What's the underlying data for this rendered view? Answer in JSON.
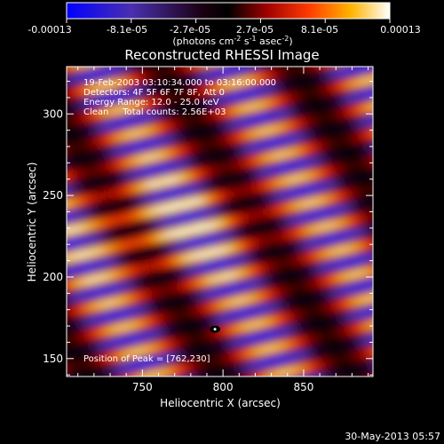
{
  "chart_data": {
    "type": "heatmap",
    "title": "Reconstructed RHESSI Image",
    "xlabel": "Heliocentric X (arcsec)",
    "ylabel": "Heliocentric Y (arcsec)",
    "xlim": [
      703,
      893
    ],
    "ylim": [
      139,
      329
    ],
    "x_ticks": [
      750,
      800,
      850
    ],
    "y_ticks": [
      150,
      200,
      250,
      300
    ],
    "colorbar": {
      "tick_labels": [
        "-0.00013",
        "-8.1e-05",
        "-2.7e-05",
        "2.7e-05",
        "8.1e-05",
        "0.00013"
      ],
      "range": [
        -0.00013,
        0.00013
      ],
      "unit_label": "(photons cm",
      "unit_sup1": "-2",
      "unit_mid": " s",
      "unit_sup2": "-1",
      "unit_end": " asec",
      "unit_sup3": "-2",
      "unit_close": ")"
    },
    "annotations": [
      "19-Feb-2003 03:10:34.000 to 03:16:00.000",
      "Detectors: 4F 5F 6F 7F 8F, Att 0",
      "Energy Range: 12.0 - 25.0 keV",
      "Clean     Total counts: 2.56E+03"
    ],
    "peak_label": "Position of Peak = [762,230]",
    "peak": [
      762,
      230
    ],
    "marker": [
      795,
      168
    ]
  },
  "footer": {
    "timestamp": "30-May-2013 05:57"
  },
  "colors": {
    "background": "#000000",
    "foreground": "#ffffff"
  }
}
